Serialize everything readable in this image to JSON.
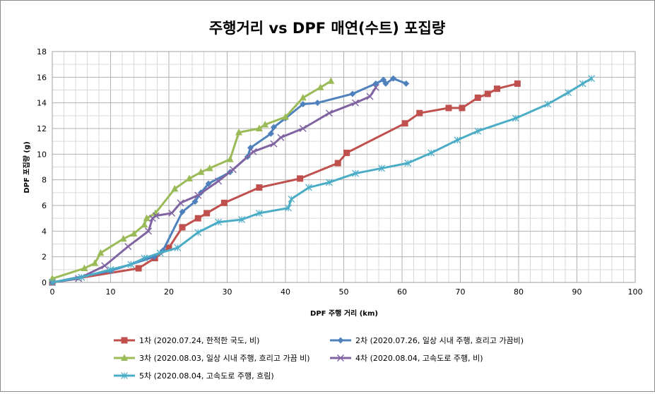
{
  "chart_data": {
    "type": "line",
    "title": "주행거리 vs DPF 매연(수트) 포집량",
    "xlabel": "DPF 주행 거리 (km)",
    "ylabel": "DPF 포집량 (g)",
    "xlim": [
      0,
      100
    ],
    "ylim": [
      0,
      18
    ],
    "xticks": [
      "0",
      "10",
      "20",
      "30",
      "40",
      "50",
      "60",
      "70",
      "80",
      "90",
      "100"
    ],
    "yticks": [
      "0",
      "2",
      "4",
      "6",
      "8",
      "10",
      "12",
      "14",
      "16",
      "18"
    ],
    "grid": true,
    "legend_position": "bottom",
    "series": [
      {
        "name": "1차 (2020.07.24, 한적한 국도, 비)",
        "color": "#c0504d",
        "marker": "square",
        "x": [
          0,
          14.8,
          17.6,
          20.0,
          22.3,
          25.0,
          26.5,
          29.5,
          35.5,
          42.5,
          49.0,
          50.5,
          60.5,
          63.0,
          68.0,
          70.3,
          73.0,
          74.7,
          76.3,
          79.8
        ],
        "y": [
          0,
          1.1,
          1.9,
          2.7,
          4.3,
          5.0,
          5.4,
          6.2,
          7.4,
          8.1,
          9.3,
          10.1,
          12.4,
          13.2,
          13.6,
          13.6,
          14.4,
          14.7,
          15.1,
          15.5
        ]
      },
      {
        "name": "2차 (2020.07.26, 일상 시내 주행, 흐리고 가끔비)",
        "color": "#4f81bd",
        "marker": "diamond",
        "x": [
          0,
          10.0,
          17.5,
          19.0,
          22.3,
          24.5,
          25.5,
          26.8,
          30.5,
          33.5,
          34.0,
          37.5,
          38.0,
          40.0,
          43.0,
          45.5,
          51.5,
          55.5,
          56.8,
          57.2,
          58.5,
          60.7
        ],
        "y": [
          0,
          0.9,
          2.0,
          2.5,
          5.5,
          6.3,
          7.0,
          7.7,
          8.6,
          9.8,
          10.5,
          11.6,
          12.1,
          12.8,
          13.9,
          14.0,
          14.7,
          15.5,
          15.8,
          15.5,
          15.9,
          15.5
        ]
      },
      {
        "name": "3차 (2020.08.03, 일상 시내 주행, 흐리고 가끔 비)",
        "color": "#9bbb59",
        "marker": "triangle",
        "x": [
          0,
          5.5,
          7.3,
          8.3,
          12.2,
          14.0,
          15.8,
          16.2,
          17.7,
          21.0,
          23.5,
          25.5,
          27.0,
          30.5,
          32.0,
          35.5,
          36.5,
          40.0,
          43.0,
          46.0,
          47.8
        ],
        "y": [
          0.3,
          1.1,
          1.5,
          2.3,
          3.4,
          3.8,
          4.5,
          5.0,
          5.4,
          7.3,
          8.1,
          8.6,
          8.9,
          9.6,
          11.7,
          12.0,
          12.3,
          12.9,
          14.4,
          15.2,
          15.7
        ]
      },
      {
        "name": "4차 (2020.08.04, 고속도로 주행, 비)",
        "color": "#8064a2",
        "marker": "x",
        "x": [
          0,
          4.5,
          9.0,
          13.0,
          16.5,
          17.2,
          17.8,
          20.5,
          22.0,
          25.0,
          28.5,
          31.0,
          34.5,
          38.0,
          39.2,
          43.0,
          47.5,
          52.0,
          54.5,
          55.5
        ],
        "y": [
          0,
          0.3,
          1.3,
          2.8,
          4.0,
          5.0,
          5.2,
          5.4,
          6.2,
          6.8,
          7.9,
          8.8,
          10.2,
          10.8,
          11.3,
          12.0,
          13.2,
          14.0,
          14.5,
          15.2
        ]
      },
      {
        "name": "5차 (2020.08.04, 고속도로 주행, 흐림)",
        "color": "#4bacc6",
        "marker": "star",
        "x": [
          0,
          5.0,
          10.0,
          13.5,
          15.8,
          18.5,
          21.5,
          25.0,
          28.5,
          32.5,
          35.5,
          40.5,
          41.0,
          44.0,
          47.5,
          52.0,
          56.5,
          61.0,
          65.0,
          69.5,
          73.0,
          79.5,
          85.0,
          88.5,
          91.0,
          92.5
        ],
        "y": [
          0,
          0.4,
          1.0,
          1.4,
          1.9,
          2.3,
          2.7,
          3.9,
          4.7,
          4.9,
          5.4,
          5.8,
          6.5,
          7.4,
          7.8,
          8.5,
          8.9,
          9.3,
          10.1,
          11.1,
          11.8,
          12.8,
          13.9,
          14.8,
          15.5,
          15.9
        ]
      }
    ]
  }
}
